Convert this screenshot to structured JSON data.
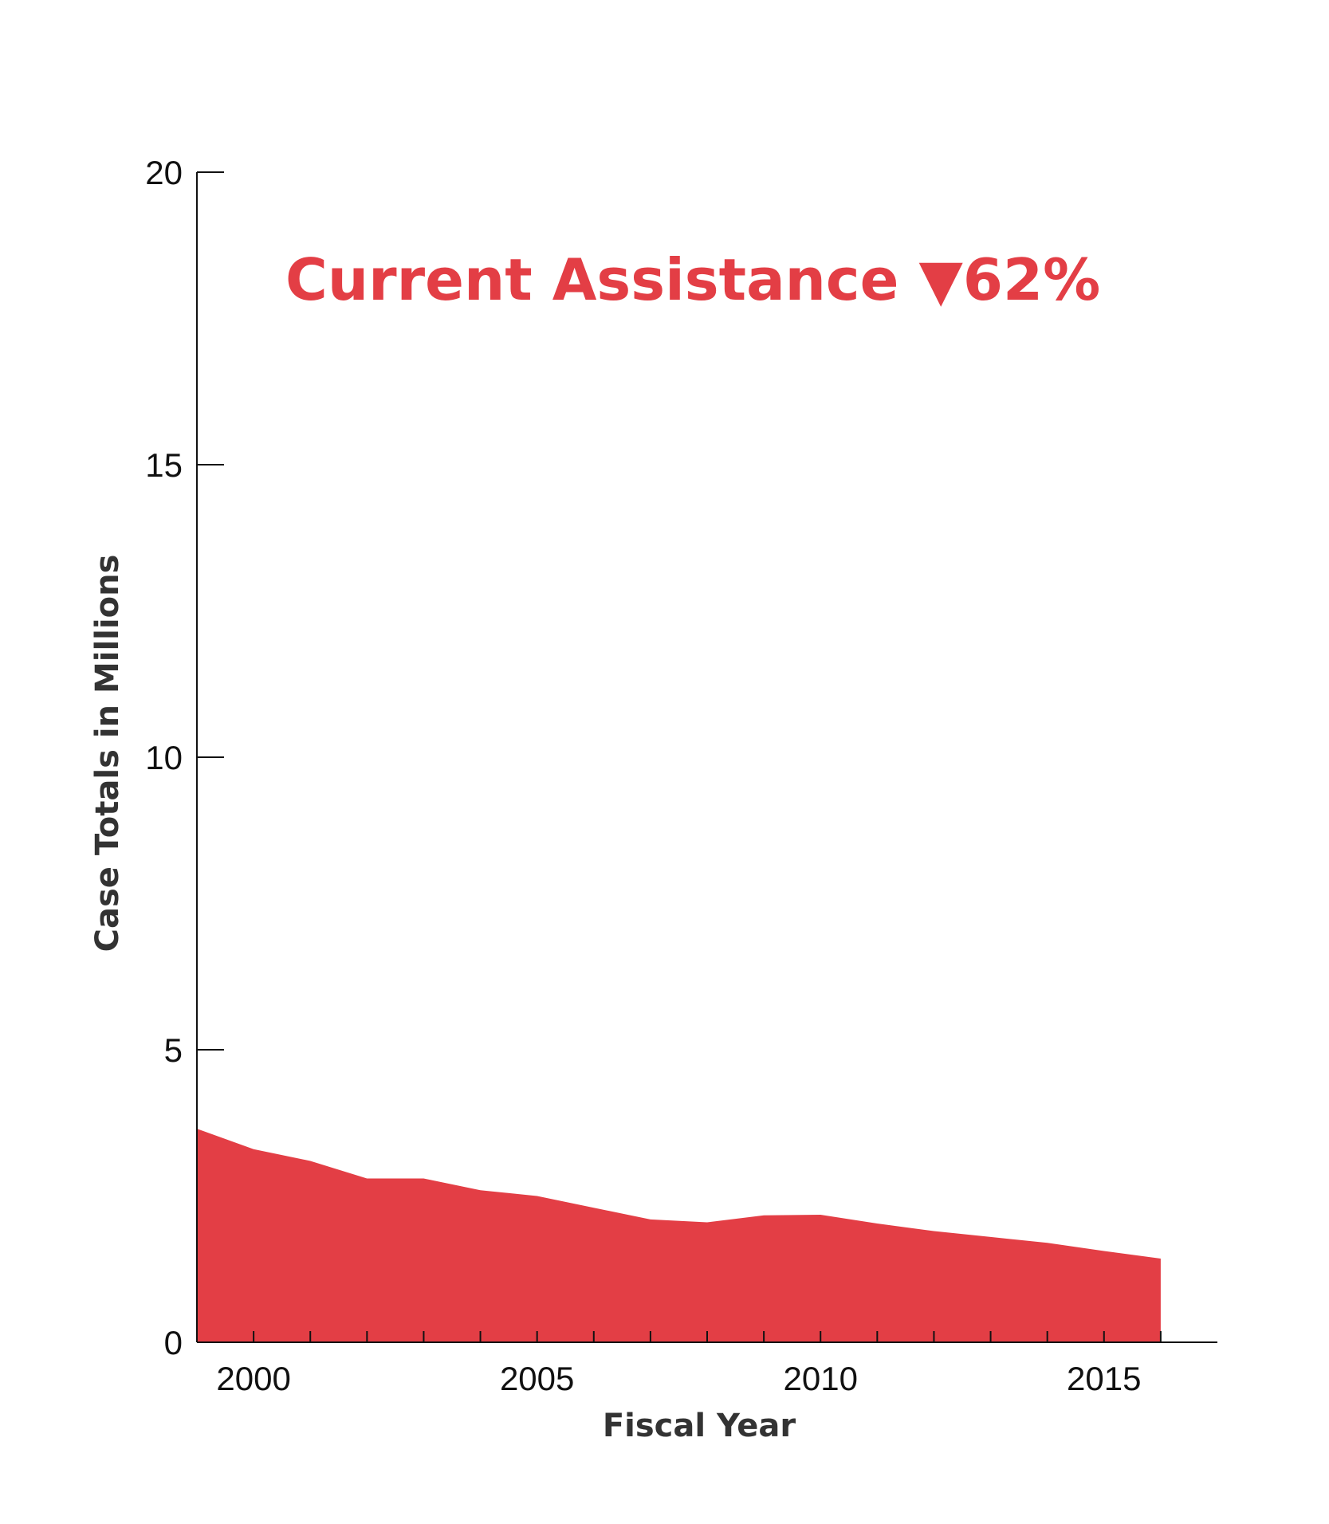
{
  "chart_data": {
    "type": "area",
    "annotation": "Current Assistance ▼62%",
    "xlabel": "Fiscal Year",
    "ylabel": "Case Totals in Millions",
    "xlim": [
      1999,
      2017
    ],
    "ylim": [
      0,
      20
    ],
    "x_ticks": [
      2000,
      2005,
      2010,
      2015
    ],
    "y_ticks": [
      0,
      5,
      10,
      15,
      20
    ],
    "grid": false,
    "legend": "none",
    "color": "#e33e45",
    "series": [
      {
        "x": [
          1999,
          2000,
          2001,
          2002,
          2003,
          2004,
          2005,
          2006,
          2007,
          2008,
          2009,
          2010,
          2011,
          2012,
          2013,
          2014,
          2015,
          2016
        ],
        "values": [
          3.65,
          3.3,
          3.1,
          2.8,
          2.8,
          2.6,
          2.5,
          2.3,
          2.1,
          2.05,
          2.17,
          2.18,
          2.03,
          1.9,
          1.8,
          1.7,
          1.56,
          1.43
        ]
      }
    ]
  }
}
